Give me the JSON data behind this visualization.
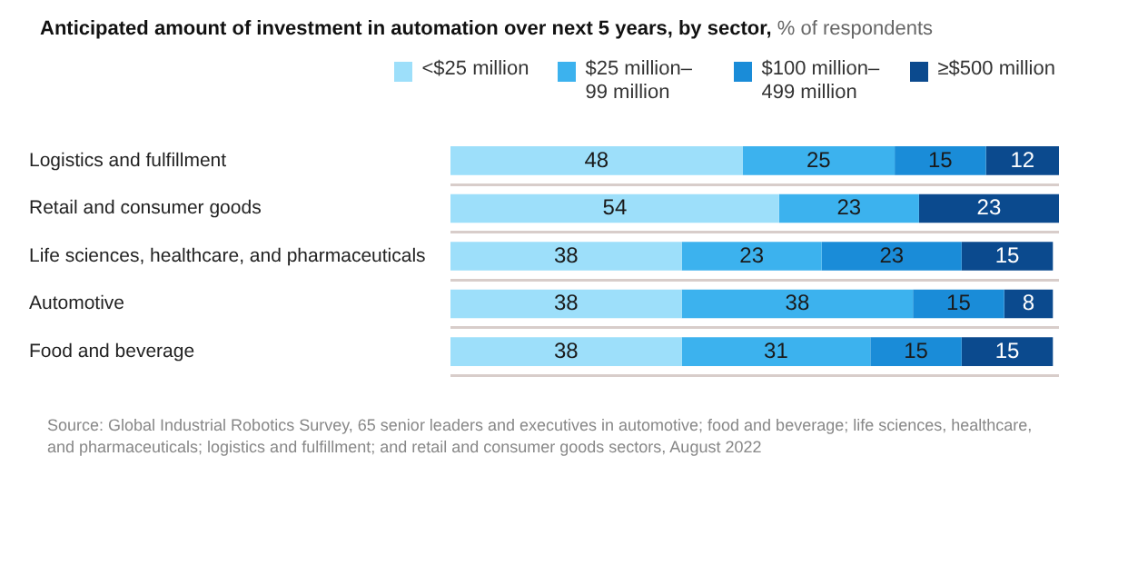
{
  "chart_data": {
    "type": "bar",
    "orientation": "horizontal",
    "stacked": true,
    "title": "Anticipated amount of investment in automation over next 5 years, by sector,",
    "subtitle": "% of respondents",
    "categories": [
      "Logistics and fulfillment",
      "Retail and consumer goods",
      "Life sciences, healthcare, and pharmaceuticals",
      "Automotive",
      "Food and beverage"
    ],
    "series": [
      {
        "name": "<$25 million",
        "color": "#9ddffa",
        "values": [
          48,
          54,
          38,
          38,
          38
        ]
      },
      {
        "name": "$25 million–99 million",
        "color": "#3cb2ee",
        "values": [
          25,
          23,
          23,
          38,
          31
        ]
      },
      {
        "name": "$100 million–499 million",
        "color": "#1a8cd8",
        "values": [
          15,
          null,
          23,
          15,
          15
        ]
      },
      {
        "name": "≥$500 million",
        "color": "#0b4a8e",
        "values": [
          12,
          23,
          15,
          8,
          15
        ]
      }
    ],
    "xlim": [
      0,
      100
    ],
    "tick_labels": "y",
    "grid": "y",
    "legend": "top right",
    "data_labels": true,
    "annotations": [
      "Source: Global Industrial Robotics Survey, 65 senior leaders and executives in automotive; food and beverage; life sciences, healthcare, and pharmaceuticals; logistics and fulfillment; and retail and consumer goods sectors, August 2022"
    ]
  }
}
